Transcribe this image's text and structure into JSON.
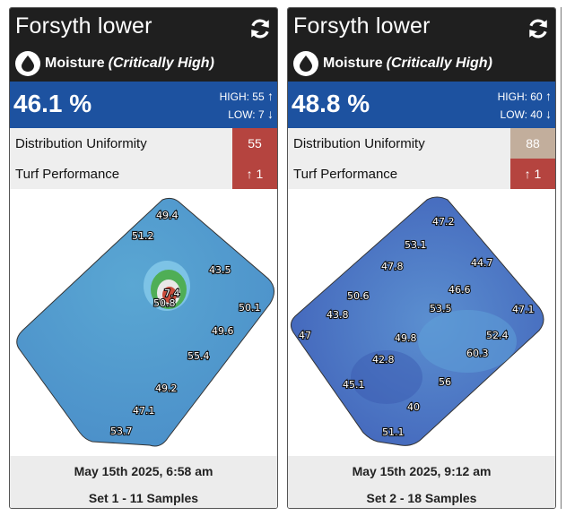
{
  "cards": [
    {
      "title": "Forsyth lower",
      "moisture_label": "Moisture",
      "moisture_status": "(Critically High)",
      "value": "46.1 %",
      "high": "HIGH: 55",
      "low": "LOW: 7",
      "distribution_label": "Distribution Uniformity",
      "distribution_value": "55",
      "distribution_color": "#b5443f",
      "turf_label": "Turf Performance",
      "turf_value": "1",
      "turf_color": "#b5443f",
      "date": "May 15th 2025, 6:58 am",
      "set": "Set 1 - 11 Samples",
      "samples": [
        "49.4",
        "51.2",
        "43.5",
        "7.4",
        "50.8",
        "50.1",
        "49.6",
        "55.4",
        "49.2",
        "47.1",
        "53.7"
      ]
    },
    {
      "title": "Forsyth lower",
      "moisture_label": "Moisture",
      "moisture_status": "(Critically High)",
      "value": "48.8 %",
      "high": "HIGH: 60",
      "low": "LOW: 40",
      "distribution_label": "Distribution Uniformity",
      "distribution_value": "88",
      "distribution_color": "#c2ae9c",
      "turf_label": "Turf Performance",
      "turf_value": "1",
      "turf_color": "#b5443f",
      "date": "May 15th 2025, 9:12 am",
      "set": "Set 2 - 18 Samples",
      "samples": [
        "47.2",
        "53.1",
        "47.8",
        "44.7",
        "46.6",
        "50.6",
        "53.5",
        "43.8",
        "47.1",
        "47",
        "49.8",
        "52.4",
        "60.3",
        "42.8",
        "45.1",
        "56",
        "40",
        "51.1"
      ]
    }
  ],
  "colors": {
    "header_bg": "#1f1f1f",
    "value_bar": "#1d52a0"
  },
  "icons": {
    "refresh": "refresh-icon",
    "moisture": "water-drop-icon",
    "up": "arrow-up-icon",
    "down": "arrow-down-icon"
  }
}
